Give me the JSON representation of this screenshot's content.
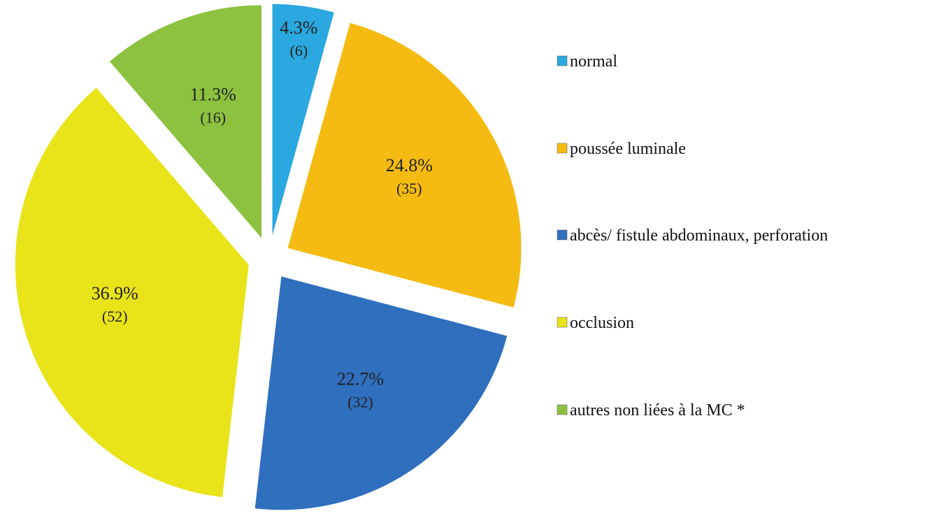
{
  "chart_data": {
    "type": "pie",
    "categories": [
      "normal",
      "poussée luminale",
      "abcès/ fistule abdominaux, perforation",
      "occlusion",
      "autres non liées à la MC *"
    ],
    "values": [
      4.3,
      24.8,
      22.7,
      36.9,
      11.3
    ],
    "value_labels": [
      "4.3%",
      "24.8%",
      "22.7%",
      "36.9%",
      "11.3%"
    ],
    "count_labels": [
      "(6)",
      "(35)",
      "(32)",
      "(52)",
      "(16)"
    ],
    "colors": [
      "#2aa8df",
      "#f5bb12",
      "#2f6fbe",
      "#e9e31a",
      "#8cc240"
    ],
    "legend": "right"
  }
}
